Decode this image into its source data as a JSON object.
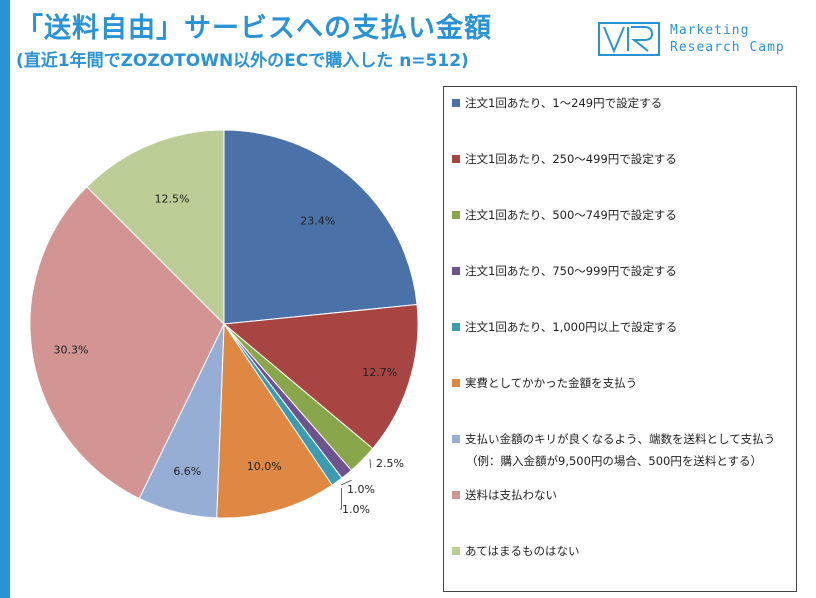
{
  "header": {
    "title": "「送料自由」サービスへの支払い金額",
    "subtitle": "(直近1年間でZOZOTOWN以外のECで購入した n=512)"
  },
  "logo": {
    "line1": "Marketing",
    "line2": "Research Camp"
  },
  "colors": {
    "accent": "#2a93d5"
  },
  "chart_data": {
    "type": "pie",
    "slices": [
      {
        "label": "注文1回あたり、1～249円で設定する",
        "value": 23.4,
        "display": "23.4%",
        "color": "#4a72a8"
      },
      {
        "label": "注文1回あたり、250～499円で設定する",
        "value": 12.7,
        "display": "12.7%",
        "color": "#a84542"
      },
      {
        "label": "注文1回あたり、500～749円で設定する",
        "value": 2.5,
        "display": "2.5%",
        "color": "#89a64a"
      },
      {
        "label": "注文1回あたり、750～999円で設定する",
        "value": 1.0,
        "display": "1.0%",
        "color": "#6e548e"
      },
      {
        "label": "注文1回あたり、1,000円以上で設定する",
        "value": 1.0,
        "display": "1.0%",
        "color": "#3b9bb3"
      },
      {
        "label": "実費としてかかった金額を支払う",
        "value": 10.0,
        "display": "10.0%",
        "color": "#de8843"
      },
      {
        "label": "支払い金額のキリが良くなるよう、端数を送料として支払う",
        "sublabel": "（例：購入金額が9,500円の場合、500円を送料とする）",
        "value": 6.6,
        "display": "6.6%",
        "color": "#96add6"
      },
      {
        "label": "送料は支払わない",
        "value": 30.3,
        "display": "30.3%",
        "color": "#d39594"
      },
      {
        "label": "あてはまるものはない",
        "value": 12.5,
        "display": "12.5%",
        "color": "#bccd96"
      }
    ]
  }
}
